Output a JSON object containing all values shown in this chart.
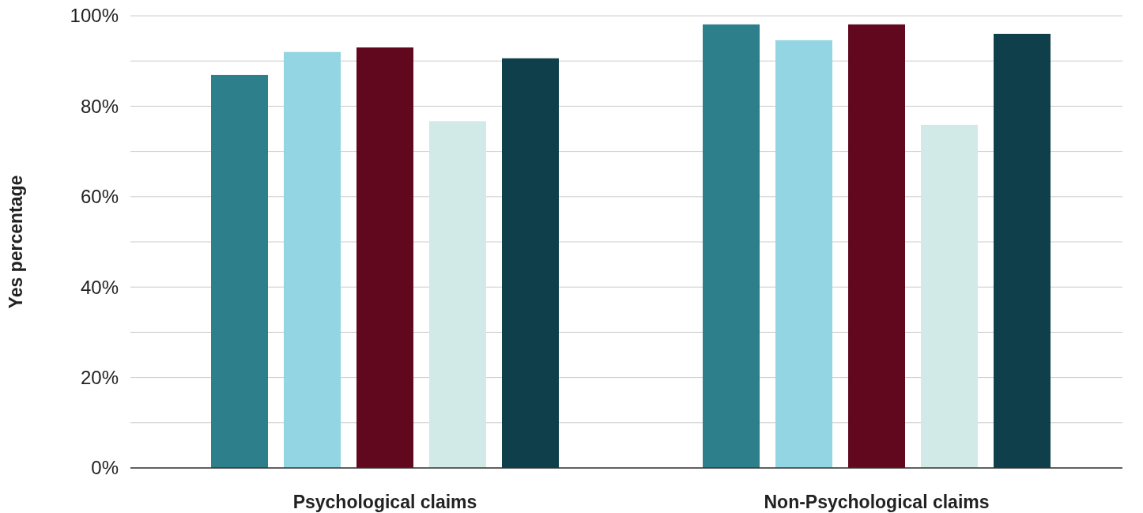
{
  "chart_data": {
    "type": "bar",
    "ylabel": "Yes percentage",
    "categories": [
      "Psychological claims",
      "Non-Psychological claims"
    ],
    "series": [
      {
        "color": "#2e7f8c",
        "values": [
          86.9,
          98.1
        ]
      },
      {
        "color": "#93d5e2",
        "values": [
          92.0,
          94.6
        ]
      },
      {
        "color": "#62081e",
        "values": [
          93.0,
          98.1
        ]
      },
      {
        "color": "#d2eae7",
        "values": [
          76.7,
          75.9
        ]
      },
      {
        "color": "#0f3f4b",
        "values": [
          90.6,
          96.0
        ]
      }
    ],
    "ylim": [
      0,
      100
    ],
    "yticks": [
      {
        "value": 0,
        "label": "0%"
      },
      {
        "value": 10,
        "label": null
      },
      {
        "value": 20,
        "label": "20%"
      },
      {
        "value": 30,
        "label": null
      },
      {
        "value": 40,
        "label": "40%"
      },
      {
        "value": 50,
        "label": null
      },
      {
        "value": 60,
        "label": "60%"
      },
      {
        "value": 70,
        "label": null
      },
      {
        "value": 80,
        "label": "80%"
      },
      {
        "value": 90,
        "label": null
      },
      {
        "value": 100,
        "label": "100%"
      }
    ],
    "grid": "y"
  }
}
